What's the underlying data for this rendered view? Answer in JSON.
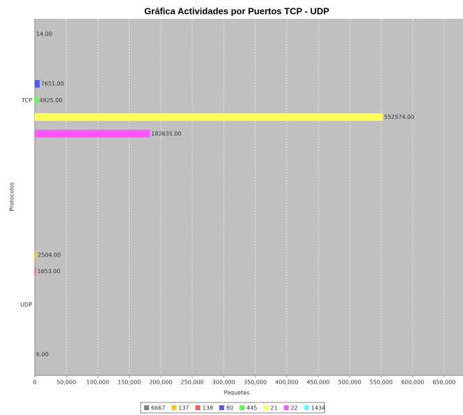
{
  "chart_data": {
    "type": "bar",
    "orientation": "horizontal",
    "title": "Gráfica Actividades por Puertos TCP - UDP",
    "x_label": "Paquetes",
    "y_label": "Protocolos",
    "categories": [
      "TCP",
      "UDP"
    ],
    "series": [
      {
        "name": "6667",
        "color": "#808080",
        "values": [
          14,
          null
        ],
        "value_labels": [
          "14.00",
          null
        ]
      },
      {
        "name": "137",
        "color": "#ffc800",
        "values": [
          null,
          2504
        ],
        "value_labels": [
          null,
          "2504.00"
        ]
      },
      {
        "name": "138",
        "color": "#ff5555",
        "values": [
          null,
          1653
        ],
        "value_labels": [
          null,
          "1653.00"
        ]
      },
      {
        "name": "80",
        "color": "#5555ff",
        "values": [
          7651,
          null
        ],
        "value_labels": [
          "7651.00",
          null
        ]
      },
      {
        "name": "445",
        "color": "#55ff55",
        "values": [
          4925,
          null
        ],
        "value_labels": [
          "4925.00",
          null
        ]
      },
      {
        "name": "21",
        "color": "#ffff55",
        "values": [
          552574,
          null
        ],
        "value_labels": [
          "552574.00",
          null
        ]
      },
      {
        "name": "22",
        "color": "#ff55ff",
        "values": [
          182635,
          null
        ],
        "value_labels": [
          "182635.00",
          null
        ]
      },
      {
        "name": "1434",
        "color": "#55ffff",
        "values": [
          null,
          6
        ],
        "value_labels": [
          null,
          "6.00"
        ]
      }
    ],
    "xlim": [
      0,
      680000
    ],
    "xticks": [
      0,
      {
        "value": 50000,
        "label": "50,000"
      },
      {
        "value": 100000,
        "label": "100,000"
      },
      {
        "value": 150000,
        "label": "150,000"
      },
      {
        "value": 200000,
        "label": "200,000"
      },
      {
        "value": 250000,
        "label": "250,000"
      },
      {
        "value": 300000,
        "label": "300,000"
      },
      {
        "value": 350000,
        "label": "350,000"
      },
      {
        "value": 400000,
        "label": "400,000"
      },
      {
        "value": 450000,
        "label": "450,000"
      },
      {
        "value": 500000,
        "label": "500,000"
      },
      {
        "value": 550000,
        "label": "550,000"
      },
      {
        "value": 600000,
        "label": "600,000"
      },
      {
        "value": 650000,
        "label": "650,000"
      }
    ],
    "grid": true,
    "legend": "bottom"
  }
}
